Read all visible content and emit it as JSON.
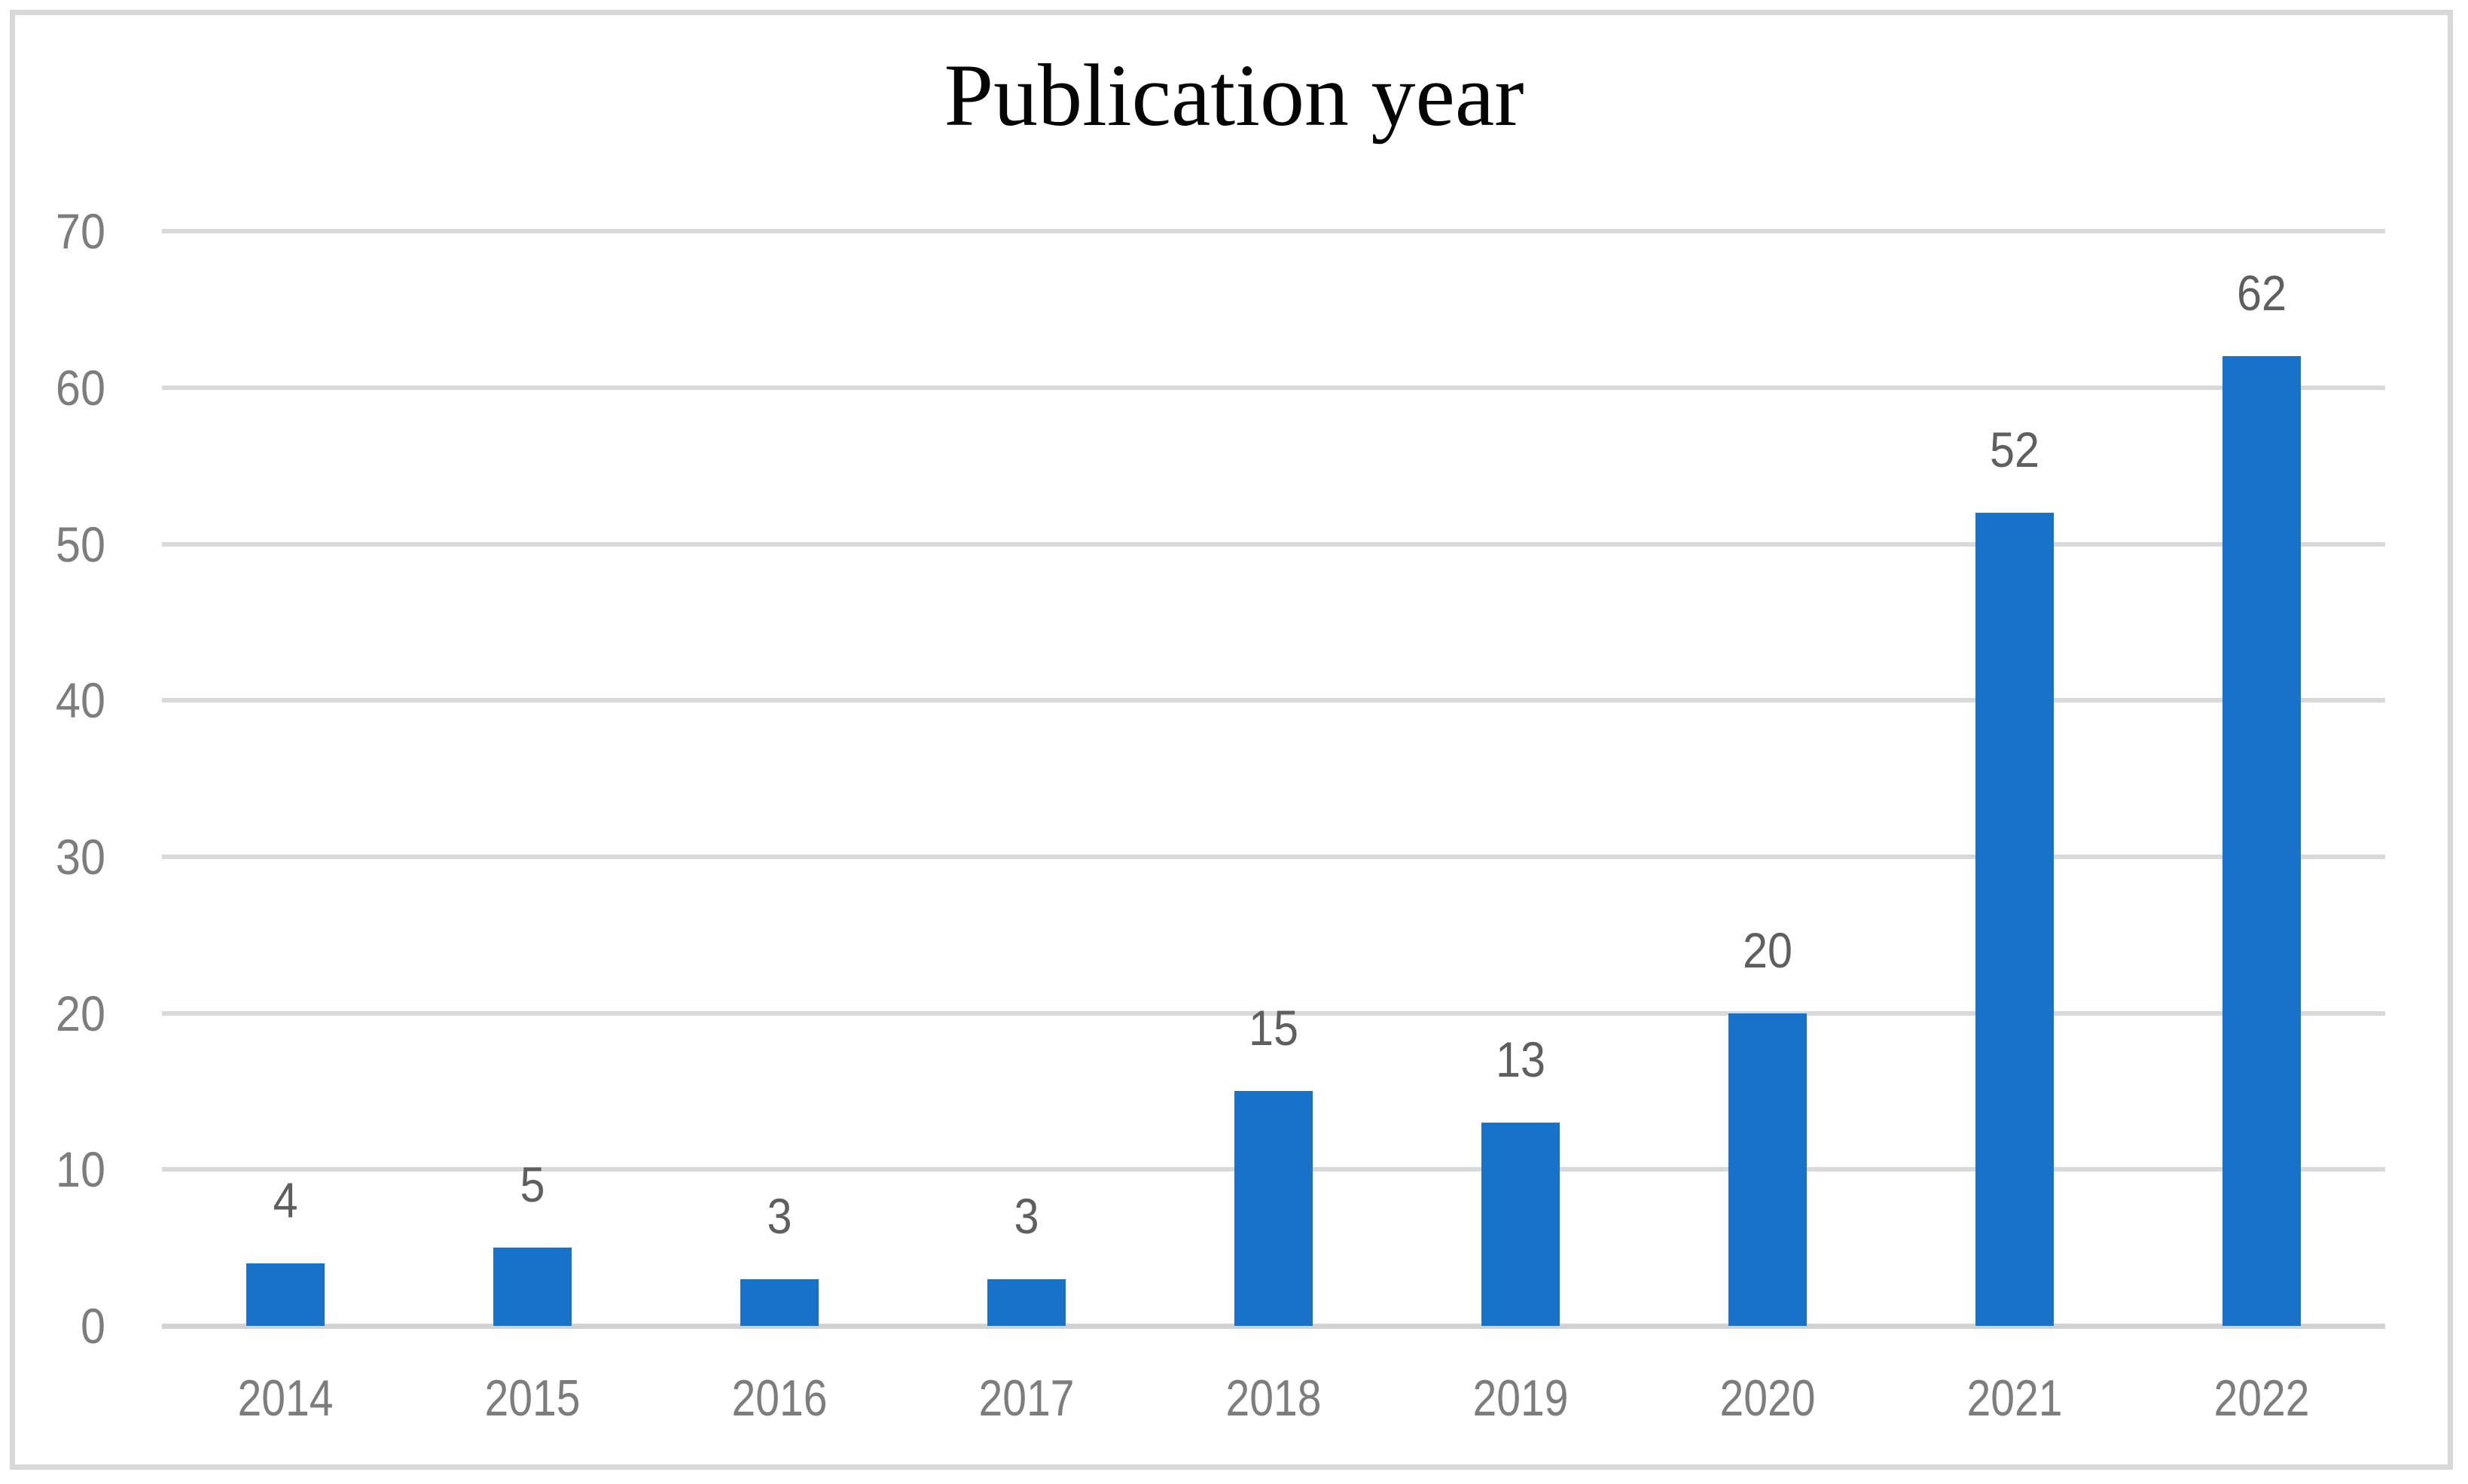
{
  "title": "Publication year",
  "colors": {
    "bar": "#1773c9",
    "gridline": "#d9d9d9",
    "axis_line": "#d2d2d2",
    "frame_border": "#d8d8d8",
    "tick_label": "#7d7d7d",
    "data_label": "#5f5f5f",
    "title_color": "#050505",
    "background": "#ffffff"
  },
  "chart_data": {
    "type": "bar",
    "title": "Publication year",
    "categories": [
      "2014",
      "2015",
      "2016",
      "2017",
      "2018",
      "2019",
      "2020",
      "2021",
      "2022"
    ],
    "values": [
      4,
      5,
      3,
      3,
      15,
      13,
      20,
      52,
      62
    ],
    "data_labels": [
      "4",
      "5",
      "3",
      "3",
      "15",
      "13",
      "20",
      "52",
      "62"
    ],
    "xlabel": "",
    "ylabel": "",
    "ylim": [
      0,
      70
    ],
    "yticks": [
      0,
      10,
      20,
      30,
      40,
      50,
      60,
      70
    ],
    "grid": "horizontal",
    "legend": "none",
    "series_color": "#1773c9"
  }
}
